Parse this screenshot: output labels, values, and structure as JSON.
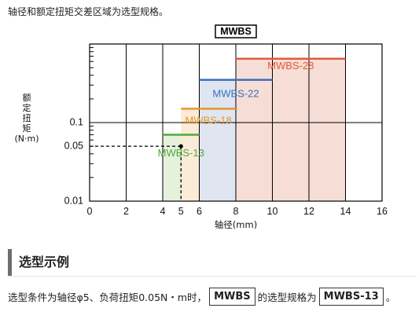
{
  "intro_text": "轴径和额定扭矩交差区域为选型规格。",
  "section_title": "选型示例",
  "example": {
    "prefix": "选型条件为轴径φ5、负荷扭矩0.05N・m时，",
    "series_chip": "MWBS",
    "middle": "的选型规格为",
    "result_chip": "MWBS-13",
    "suffix": "。"
  },
  "chart_data": {
    "type": "bar",
    "title": "MWBS",
    "xlabel": "轴径(mm)",
    "ylabel": [
      "额",
      "定",
      "扭",
      "矩",
      "(N·m)"
    ],
    "xlim": [
      0,
      16
    ],
    "xticks": [
      0,
      2,
      4,
      5,
      6,
      8,
      10,
      12,
      14,
      16
    ],
    "xtick_labels": [
      "0",
      "2",
      "4",
      "5",
      "6",
      "8",
      "10",
      "12",
      "14",
      "16"
    ],
    "y_scale": "log",
    "ylim": [
      0.01,
      1
    ],
    "yticks": [
      0.01,
      0.05,
      0.1
    ],
    "ytick_labels": [
      "0.01",
      "0.05",
      "0.1"
    ],
    "grid_x": [
      2,
      4,
      6,
      8,
      10,
      12,
      14
    ],
    "grid_y": [
      0.1
    ],
    "series": [
      {
        "name": "MWBS-13",
        "x_min": 4,
        "x_max": 6,
        "torque": 0.07,
        "line_color": "#4daa3a",
        "fill_color": "#e6f1dc",
        "label_x": 5,
        "label_y": 0.04
      },
      {
        "name": "MWBS-18",
        "x_min": 5,
        "x_max": 8,
        "torque": 0.15,
        "line_color": "#e6952e",
        "fill_color": "#fbebd7",
        "label_x": 6.5,
        "label_y": 0.105
      },
      {
        "name": "MWBS-22",
        "x_min": 6,
        "x_max": 10,
        "torque": 0.35,
        "line_color": "#3a6fbf",
        "fill_color": "#dfe5f1",
        "label_x": 8,
        "label_y": 0.23
      },
      {
        "name": "MWBS-28",
        "x_min": 8,
        "x_max": 14,
        "torque": 0.65,
        "line_color": "#e25a3c",
        "fill_color": "#f6ddd5",
        "label_x": 11,
        "label_y": 0.52
      }
    ],
    "marker": {
      "x": 5,
      "y": 0.05
    }
  }
}
